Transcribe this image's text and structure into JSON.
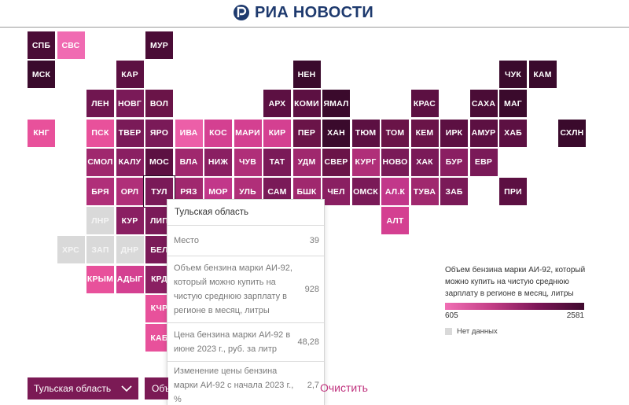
{
  "header": {
    "brand": "РИА НОВОСТИ"
  },
  "map": {
    "regions": [
      {
        "code": "СПБ",
        "color": "#4a0c36"
      },
      {
        "code": "СВС",
        "color": "#f06bb2"
      },
      {
        "code": "МУР",
        "color": "#4a0c36"
      },
      {
        "code": "МСК",
        "color": "#3a0a2c"
      },
      {
        "code": "КАР",
        "color": "#5c1042"
      },
      {
        "code": "НЕН",
        "color": "#3a0a2c"
      },
      {
        "code": "ЧУК",
        "color": "#3a0a2c"
      },
      {
        "code": "КАМ",
        "color": "#3a0a2c"
      },
      {
        "code": "ЛЕН",
        "color": "#701650"
      },
      {
        "code": "НОВГ",
        "color": "#7a1a58"
      },
      {
        "code": "ВОЛ",
        "color": "#6a1448"
      },
      {
        "code": "АРХ",
        "color": "#5c1042"
      },
      {
        "code": "КОМИ",
        "color": "#5c1042"
      },
      {
        "code": "ЯМАЛ",
        "color": "#3a0a2c"
      },
      {
        "code": "КРАС",
        "color": "#5c1042"
      },
      {
        "code": "САХА",
        "color": "#4a0c36"
      },
      {
        "code": "МАГ",
        "color": "#3a0a2c"
      },
      {
        "code": "КНГ",
        "color": "#e8519b"
      },
      {
        "code": "ПСК",
        "color": "#e8519b"
      },
      {
        "code": "ТВЕР",
        "color": "#7a1a58"
      },
      {
        "code": "ЯРО",
        "color": "#7a1a58"
      },
      {
        "code": "ИВА",
        "color": "#ec5fa8"
      },
      {
        "code": "КОС",
        "color": "#d44091"
      },
      {
        "code": "МАРИ",
        "color": "#d44091"
      },
      {
        "code": "КИР",
        "color": "#d44091"
      },
      {
        "code": "ПЕР",
        "color": "#6a1448"
      },
      {
        "code": "ХАН",
        "color": "#3a0a2c"
      },
      {
        "code": "ТЮМ",
        "color": "#5c1042"
      },
      {
        "code": "ТОМ",
        "color": "#6a1448"
      },
      {
        "code": "КЕМ",
        "color": "#6a1448"
      },
      {
        "code": "ИРК",
        "color": "#5c1042"
      },
      {
        "code": "АМУР",
        "color": "#5c1042"
      },
      {
        "code": "ХАБ",
        "color": "#5c1042"
      },
      {
        "code": "СХЛН",
        "color": "#3a0a2c"
      },
      {
        "code": "СМОЛ",
        "color": "#a0286e"
      },
      {
        "code": "КАЛУ",
        "color": "#8a1f62"
      },
      {
        "code": "МОС",
        "color": "#5c1042"
      },
      {
        "code": "ВЛА",
        "color": "#a0286e"
      },
      {
        "code": "НИЖ",
        "color": "#8a1f62"
      },
      {
        "code": "ЧУВ",
        "color": "#b02f79"
      },
      {
        "code": "ТАТ",
        "color": "#7a1a58"
      },
      {
        "code": "УДМ",
        "color": "#a0286e"
      },
      {
        "code": "СВЕР",
        "color": "#6a1448"
      },
      {
        "code": "КУРГ",
        "color": "#b02f79"
      },
      {
        "code": "НОВО",
        "color": "#7a1a58"
      },
      {
        "code": "ХАК",
        "color": "#7a1a58"
      },
      {
        "code": "БУР",
        "color": "#8a1f62"
      },
      {
        "code": "ЕВР",
        "color": "#7a1a58"
      },
      {
        "code": "БРЯ",
        "color": "#b02f79"
      },
      {
        "code": "ОРЛ",
        "color": "#b02f79"
      },
      {
        "code": "ТУЛ",
        "color": "#7a1a58"
      },
      {
        "code": "РЯЗ",
        "color": "#a0286e"
      },
      {
        "code": "МОР",
        "color": "#c2378a"
      },
      {
        "code": "УЛЬ",
        "color": "#b02f79"
      },
      {
        "code": "САМ",
        "color": "#7a1a58"
      },
      {
        "code": "БШК",
        "color": "#a0286e"
      },
      {
        "code": "ЧЕЛ",
        "color": "#8a1f62"
      },
      {
        "code": "ОМСК",
        "color": "#7a1a58"
      },
      {
        "code": "АЛ.К",
        "color": "#c2378a"
      },
      {
        "code": "ТУВА",
        "color": "#a0286e"
      },
      {
        "code": "ЗАБ",
        "color": "#7a1a58"
      },
      {
        "code": "ПРИ",
        "color": "#5c1042"
      },
      {
        "code": "ЛНР",
        "color": "#d9d9d9"
      },
      {
        "code": "КУР",
        "color": "#8a1f62"
      },
      {
        "code": "ЛИП",
        "color": "#7a1a58"
      },
      {
        "code": "АЛТ",
        "color": "#d44091"
      },
      {
        "code": "ХРС",
        "color": "#d9d9d9"
      },
      {
        "code": "ЗАП",
        "color": "#d9d9d9"
      },
      {
        "code": "ДНР",
        "color": "#d9d9d9"
      },
      {
        "code": "БЕЛ",
        "color": "#7a1a58"
      },
      {
        "code": "КРЫМ",
        "color": "#e8519b"
      },
      {
        "code": "АДЫГ",
        "color": "#d44091"
      },
      {
        "code": "КРД",
        "color": "#8a1f62"
      },
      {
        "code": "КЧР",
        "color": "#e8519b"
      },
      {
        "code": "КАБ",
        "color": "#e8519b"
      }
    ]
  },
  "tooltip": {
    "region": "Тульская область",
    "rows": [
      {
        "label": "Место",
        "value": "39"
      },
      {
        "label": "Объем бензина марки АИ-92, который можно купить на чистую среднюю зарплату в регионе в месяц, литры",
        "value": "928"
      },
      {
        "label": "Цена бензина марки АИ-92 в июне 2023 г., руб. за литр",
        "value": "48,28"
      },
      {
        "label": "Изменение цены бензина марки АИ-92 с начала 2023 г., %",
        "value": "2,7"
      }
    ]
  },
  "legend": {
    "title": "Объем бензина марки АИ-92, который можно купить на чистую среднюю зарплату в регионе в месяц, литры",
    "min": "605",
    "max": "2581",
    "nodata": "Нет данных",
    "color_min": "#f06fb4",
    "color_max": "#3f0a2e"
  },
  "controls": {
    "region_select": "Тульская область",
    "second_select": "Объ",
    "clear": "Очистить"
  }
}
